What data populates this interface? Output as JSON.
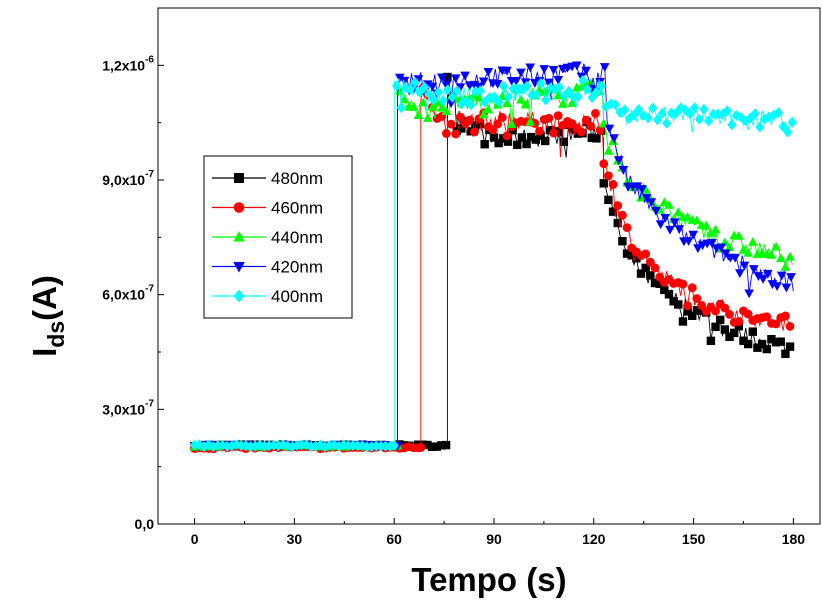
{
  "chart_data": {
    "type": "line",
    "xlabel": "Tempo (s)",
    "ylabel_main": "I",
    "ylabel_sub": "ds",
    "ylabel_tail": "(A)",
    "xlim": [
      -11,
      188
    ],
    "ylim": [
      0,
      1.35e-06
    ],
    "x_ticks": [
      0,
      30,
      60,
      90,
      120,
      150,
      180
    ],
    "x_tick_labels": [
      "0",
      "30",
      "60",
      "90",
      "120",
      "150",
      "180"
    ],
    "y_ticks": [
      0,
      3e-07,
      6e-07,
      9e-07,
      1.2e-06
    ],
    "y_tick_labels": [
      {
        "mantissa": "0,0",
        "exp": ""
      },
      {
        "mantissa": "3,0x10",
        "exp": "-7"
      },
      {
        "mantissa": "6,0x10",
        "exp": "-7"
      },
      {
        "mantissa": "9,0x10",
        "exp": "-7"
      },
      {
        "mantissa": "1,2x10",
        "exp": "-6"
      }
    ],
    "grid": false,
    "legend_position": "middle-left",
    "series": [
      {
        "name": "480nm",
        "color": "#000000",
        "marker": "square",
        "off_level": 2.05e-07,
        "on_time": 76,
        "light_off": 123,
        "plateau": [
          [
            76,
            1.17e-06
          ],
          [
            80,
            1.06e-06
          ],
          [
            90,
            1e-06
          ],
          [
            100,
            1.01e-06
          ],
          [
            110,
            1.02e-06
          ],
          [
            120,
            1.03e-06
          ]
        ],
        "decay": [
          [
            123,
            9e-07
          ],
          [
            130,
            7e-07
          ],
          [
            140,
            6.1e-07
          ],
          [
            150,
            5.6e-07
          ],
          [
            160,
            5.1e-07
          ],
          [
            170,
            4.8e-07
          ],
          [
            180,
            4.6e-07
          ]
        ]
      },
      {
        "name": "460nm",
        "color": "#ff0000",
        "marker": "circle",
        "off_level": 2e-07,
        "on_time": 68,
        "light_off": 123,
        "plateau": [
          [
            68,
            1.16e-06
          ],
          [
            75,
            1.04e-06
          ],
          [
            85,
            1.05e-06
          ],
          [
            95,
            1.06e-06
          ],
          [
            105,
            1.05e-06
          ],
          [
            115,
            1.04e-06
          ],
          [
            120,
            1.05e-06
          ]
        ],
        "decay": [
          [
            123,
            9.5e-07
          ],
          [
            130,
            7.6e-07
          ],
          [
            140,
            6.5e-07
          ],
          [
            150,
            6e-07
          ],
          [
            160,
            5.6e-07
          ],
          [
            170,
            5.35e-07
          ],
          [
            180,
            5.2e-07
          ]
        ]
      },
      {
        "name": "440nm",
        "color": "#00ff00",
        "marker": "triangle-up",
        "off_level": 2.05e-07,
        "on_time": 61,
        "light_off": 123,
        "plateau": [
          [
            61,
            1.12e-06
          ],
          [
            70,
            1.08e-06
          ],
          [
            80,
            1.1e-06
          ],
          [
            90,
            1.11e-06
          ],
          [
            100,
            1.12e-06
          ],
          [
            110,
            1.12e-06
          ],
          [
            120,
            1.13e-06
          ]
        ],
        "decay": [
          [
            123,
            1.04e-06
          ],
          [
            130,
            9.1e-07
          ],
          [
            140,
            8.3e-07
          ],
          [
            150,
            7.8e-07
          ],
          [
            160,
            7.4e-07
          ],
          [
            170,
            7.2e-07
          ],
          [
            180,
            7e-07
          ]
        ]
      },
      {
        "name": "420nm",
        "color": "#0000ff",
        "marker": "triangle-down",
        "off_level": 2.05e-07,
        "on_time": 61,
        "light_off": 124,
        "plateau": [
          [
            61,
            1.15e-06
          ],
          [
            70,
            1.16e-06
          ],
          [
            80,
            1.16e-06
          ],
          [
            90,
            1.17e-06
          ],
          [
            100,
            1.17e-06
          ],
          [
            110,
            1.18e-06
          ],
          [
            122,
            1.18e-06
          ]
        ],
        "decay": [
          [
            124,
            1.06e-06
          ],
          [
            130,
            9e-07
          ],
          [
            140,
            8e-07
          ],
          [
            150,
            7.4e-07
          ],
          [
            160,
            7e-07
          ],
          [
            170,
            6.6e-07
          ],
          [
            180,
            6.3e-07
          ]
        ]
      },
      {
        "name": "400nm",
        "color": "#00ffff",
        "marker": "diamond",
        "off_level": 2.05e-07,
        "on_time": 60,
        "light_off": 123,
        "plateau": [
          [
            60,
            1.16e-06
          ],
          [
            70,
            1.12e-06
          ],
          [
            80,
            1.12e-06
          ],
          [
            90,
            1.12e-06
          ],
          [
            100,
            1.13e-06
          ],
          [
            110,
            1.13e-06
          ],
          [
            120,
            1.14e-06
          ]
        ],
        "decay": [
          [
            123,
            1.1e-06
          ],
          [
            130,
            1.08e-06
          ],
          [
            140,
            1.07e-06
          ],
          [
            150,
            1.07e-06
          ],
          [
            160,
            1.06e-06
          ],
          [
            170,
            1.06e-06
          ],
          [
            180,
            1.06e-06
          ]
        ]
      }
    ]
  }
}
